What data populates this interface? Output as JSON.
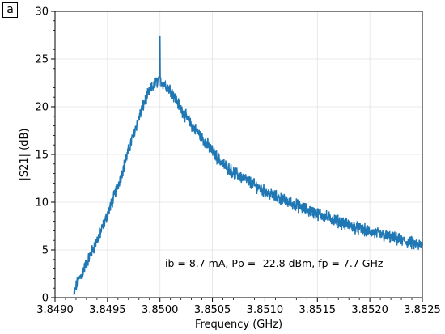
{
  "panel_label": "a",
  "chart_data": {
    "type": "line",
    "title": "",
    "xlabel": "Frequency (GHz)",
    "ylabel": "|S21| (dB)",
    "xlim": [
      3.849,
      3.8525
    ],
    "ylim": [
      0,
      30
    ],
    "xticks": [
      "3.8490",
      "3.8495",
      "3.8500",
      "3.8505",
      "3.8510",
      "3.8515",
      "3.8520",
      "3.8525"
    ],
    "yticks": [
      "0",
      "5",
      "10",
      "15",
      "20",
      "25",
      "30"
    ],
    "grid": true,
    "line_color": "#1f77b4",
    "annotation": "ib = 8.7 mA, Pp = -22.8 dBm, fp = 7.7 GHz",
    "series": [
      {
        "x": [
          3.84918,
          3.8492,
          3.84925,
          3.8493,
          3.84935,
          3.8494,
          3.84945,
          3.8495,
          3.84955,
          3.8496,
          3.84965,
          3.8497,
          3.84975,
          3.8498,
          3.84985,
          3.8499,
          3.84995,
          3.84998,
          3.85,
          3.85002,
          3.85005,
          3.8501,
          3.85015,
          3.8502,
          3.85025,
          3.8503,
          3.8504,
          3.8505,
          3.8506,
          3.8507,
          3.8508,
          3.8509,
          3.851,
          3.8511,
          3.8512,
          3.8513,
          3.8514,
          3.8515,
          3.8516,
          3.8517,
          3.8518,
          3.8519,
          3.852,
          3.8521,
          3.8522,
          3.8523,
          3.8524,
          3.8525
        ],
        "y": [
          0.2,
          1.2,
          2.4,
          3.6,
          4.8,
          6.0,
          7.3,
          8.7,
          10.2,
          11.8,
          13.5,
          15.4,
          17.2,
          18.9,
          20.4,
          21.6,
          22.4,
          22.7,
          22.8,
          22.6,
          22.3,
          21.8,
          20.8,
          19.8,
          18.9,
          18.1,
          16.8,
          15.3,
          14.0,
          13.1,
          12.5,
          11.8,
          11.1,
          10.6,
          10.1,
          9.7,
          9.2,
          8.8,
          8.4,
          8.0,
          7.6,
          7.2,
          6.9,
          6.6,
          6.3,
          6.0,
          5.7,
          5.4
        ]
      }
    ],
    "spike": {
      "x": 3.85,
      "y": 27.4
    }
  }
}
